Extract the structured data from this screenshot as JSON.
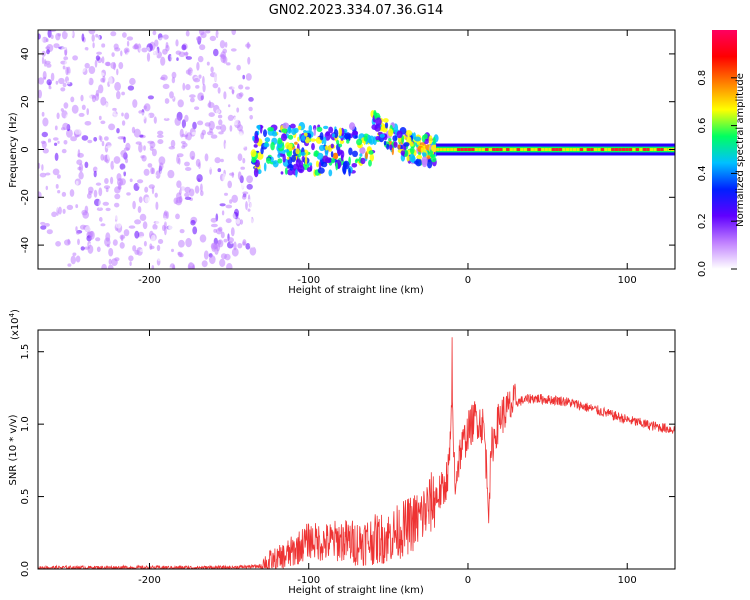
{
  "title": "GN02.2023.334.07.36.G14",
  "chart_data": [
    {
      "type": "heatmap",
      "xlabel": "Height of straight line (km)",
      "ylabel": "Frequency (Hz)",
      "xlim": [
        -270,
        130
      ],
      "ylim": [
        -50,
        50
      ],
      "xticks": [
        -200,
        -100,
        0,
        100
      ],
      "yticks": [
        -40,
        -20,
        0,
        20,
        40
      ],
      "colorbar": {
        "label": "Normalized spectral amplitude",
        "range": [
          0.0,
          1.0
        ],
        "ticks": [
          0.0,
          0.2,
          0.4,
          0.6,
          0.8
        ],
        "tick_labels": [
          "0.0",
          "0.2",
          "0.4",
          "0.6",
          "0.8"
        ],
        "colors": [
          "#ffffff",
          "#c080ff",
          "#6000ff",
          "#0020ff",
          "#00c0ff",
          "#00ff60",
          "#ffff00",
          "#ff8000",
          "#ff0000",
          "#ff0060"
        ]
      },
      "regions": [
        {
          "x": [
            -270,
            -135
          ],
          "freq": [
            -50,
            50
          ],
          "amplitude": 0.15,
          "note": "broadband noise"
        },
        {
          "x": [
            -135,
            -20
          ],
          "freq": [
            -12,
            12
          ],
          "amplitude": 0.45,
          "note": "scattered signal"
        },
        {
          "x": [
            -20,
            130
          ],
          "freq": [
            -2,
            2
          ],
          "amplitude": 0.95,
          "note": "narrow carrier line at 0 Hz"
        }
      ]
    },
    {
      "type": "line",
      "xlabel": "Height of straight line (km)",
      "ylabel": "SNR (10 * v/v)",
      "y_multiplier": "(x10",
      "y_multiplier_exp": "4",
      "y_multiplier_close": ")",
      "xlim": [
        -270,
        130
      ],
      "ylim": [
        0,
        1.65
      ],
      "xticks": [
        -200,
        -100,
        0,
        100
      ],
      "yticks": [
        0.0,
        0.5,
        1.0,
        1.5
      ],
      "ytick_labels": [
        "0.0",
        "0.5",
        "1.0",
        "1.5"
      ],
      "color": "#ee3333",
      "series": [
        {
          "x": [
            -270,
            -250,
            -200,
            -150,
            -130,
            -120,
            -110,
            -100,
            -90,
            -80,
            -70,
            -60,
            -50,
            -40,
            -30,
            -20,
            -15,
            -12,
            -10,
            -8,
            -5,
            0,
            5,
            10,
            13,
            15,
            20,
            30,
            40,
            60,
            80,
            100,
            115,
            130
          ],
          "values": [
            0.01,
            0.01,
            0.01,
            0.01,
            0.02,
            0.05,
            0.12,
            0.2,
            0.18,
            0.2,
            0.18,
            0.2,
            0.22,
            0.28,
            0.35,
            0.5,
            0.55,
            0.7,
            1.1,
            0.6,
            0.8,
            0.95,
            1.05,
            0.98,
            0.45,
            0.85,
            1.05,
            1.15,
            1.18,
            1.16,
            1.1,
            1.03,
            0.99,
            0.96
          ]
        }
      ]
    }
  ]
}
